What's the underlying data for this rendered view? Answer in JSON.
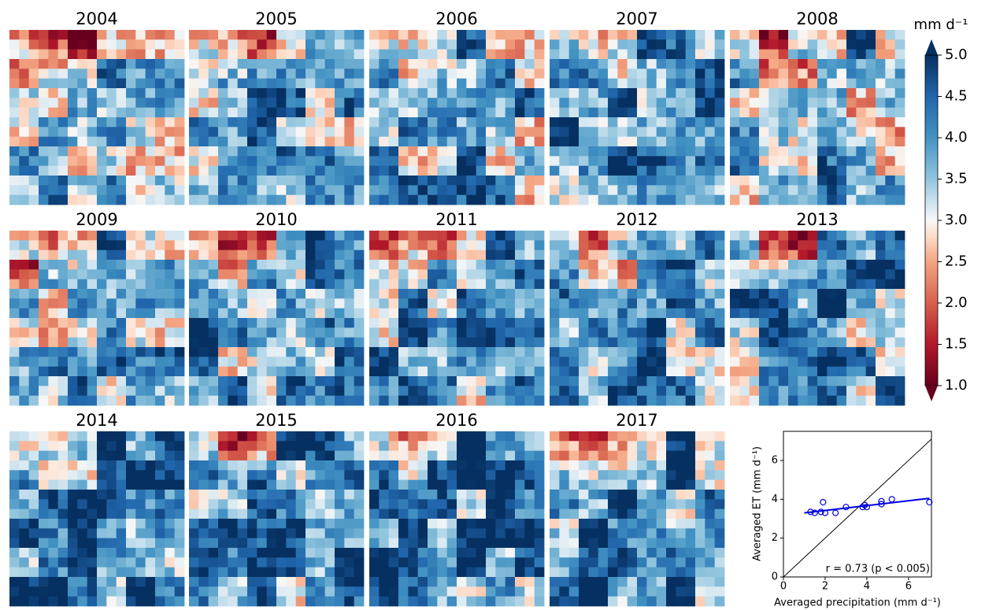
{
  "chart_data": [
    {
      "type": "maps",
      "panels": [
        "2004",
        "2005",
        "2006",
        "2007",
        "2008",
        "2009",
        "2010",
        "2011",
        "2012",
        "2013",
        "2014",
        "2015",
        "2016",
        "2017"
      ],
      "colorbar_label": "mm d⁻¹",
      "ylim": [
        1,
        5
      ],
      "yticks": [
        {
          "value": 1,
          "label": "1.0"
        },
        {
          "value": 1.5,
          "label": "1.5"
        },
        {
          "value": 2,
          "label": "2.0"
        },
        {
          "value": 2.5,
          "label": "2.5"
        },
        {
          "value": 3,
          "label": "3.0"
        },
        {
          "value": 3.5,
          "label": "3.5"
        },
        {
          "value": 4,
          "label": "4.0"
        },
        {
          "value": 4.5,
          "label": "4.5"
        },
        {
          "value": 5,
          "label": "5.0"
        }
      ],
      "colormap": "RdBu"
    },
    {
      "type": "scatter",
      "xlabel": "Averaged precipitation (mm d⁻¹)",
      "ylabel": "Averaged ET (mm d⁻¹)",
      "annotation": "r = 0.73 (p < 0.005)",
      "x": [
        1.3,
        1.5,
        1.8,
        1.9,
        2.0,
        2.5,
        3.0,
        3.8,
        3.9,
        4.0,
        4.7,
        4.7,
        5.2,
        7.0
      ],
      "y": [
        3.35,
        3.3,
        3.35,
        3.85,
        3.3,
        3.3,
        3.6,
        3.6,
        3.7,
        3.6,
        3.9,
        3.75,
        4.0,
        3.85
      ],
      "color": "#0000dd",
      "fit_line": {
        "x": [
          1,
          7
        ],
        "y": [
          3.3,
          4.05
        ],
        "color": "#0000dd"
      },
      "identity_line": true,
      "xlim": [
        0,
        7.1
      ],
      "ylim": [
        0,
        7.5
      ],
      "xticks": [
        0,
        2,
        4,
        6
      ],
      "yticks": [
        0,
        2,
        4,
        6
      ]
    }
  ]
}
